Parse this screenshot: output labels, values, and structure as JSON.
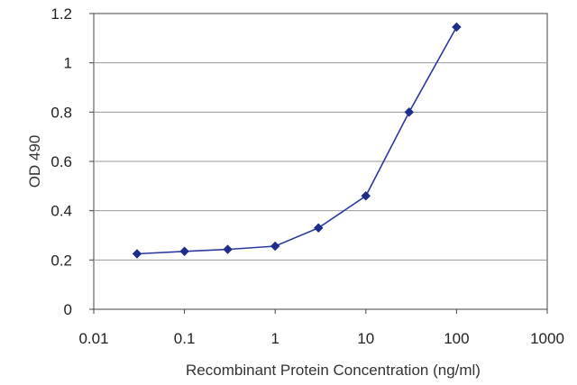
{
  "chart_data": {
    "type": "line",
    "title": "",
    "xlabel": "Recombinant Protein Concentration (ng/ml)",
    "ylabel": "OD 490",
    "x_scale": "log",
    "xlim": [
      0.01,
      1000
    ],
    "ylim": [
      0,
      1.2
    ],
    "x_ticks": [
      "0.01",
      "0.1",
      "1",
      "10",
      "100",
      "1000"
    ],
    "y_ticks": [
      "0",
      "0.2",
      "0.4",
      "0.6",
      "0.8",
      "1",
      "1.2"
    ],
    "grid": "horizontal",
    "legend": "none",
    "series": [
      {
        "color": "#2b3aa0",
        "marker": "diamond",
        "x": [
          0.03,
          0.1,
          0.3,
          1,
          3,
          10,
          30,
          100
        ],
        "y": [
          0.225,
          0.235,
          0.243,
          0.256,
          0.33,
          0.46,
          0.8,
          1.145
        ]
      }
    ]
  }
}
